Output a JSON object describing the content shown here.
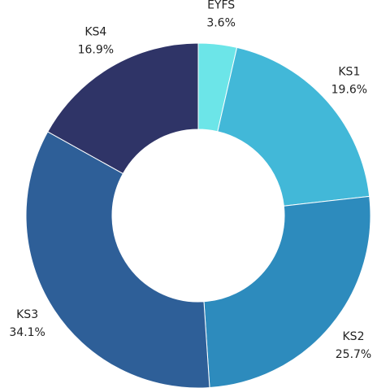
{
  "chart_data": {
    "type": "donut",
    "categories": [
      "EYFS",
      "KS1",
      "KS2",
      "KS3",
      "KS4"
    ],
    "values": [
      3.6,
      19.6,
      25.7,
      34.1,
      16.9
    ],
    "value_labels": [
      "3.6%",
      "19.6%",
      "25.7%",
      "34.1%",
      "16.9%"
    ],
    "colors": [
      "#6ce5e8",
      "#42b8d8",
      "#2d8bbd",
      "#2e5f98",
      "#2f3467"
    ]
  }
}
